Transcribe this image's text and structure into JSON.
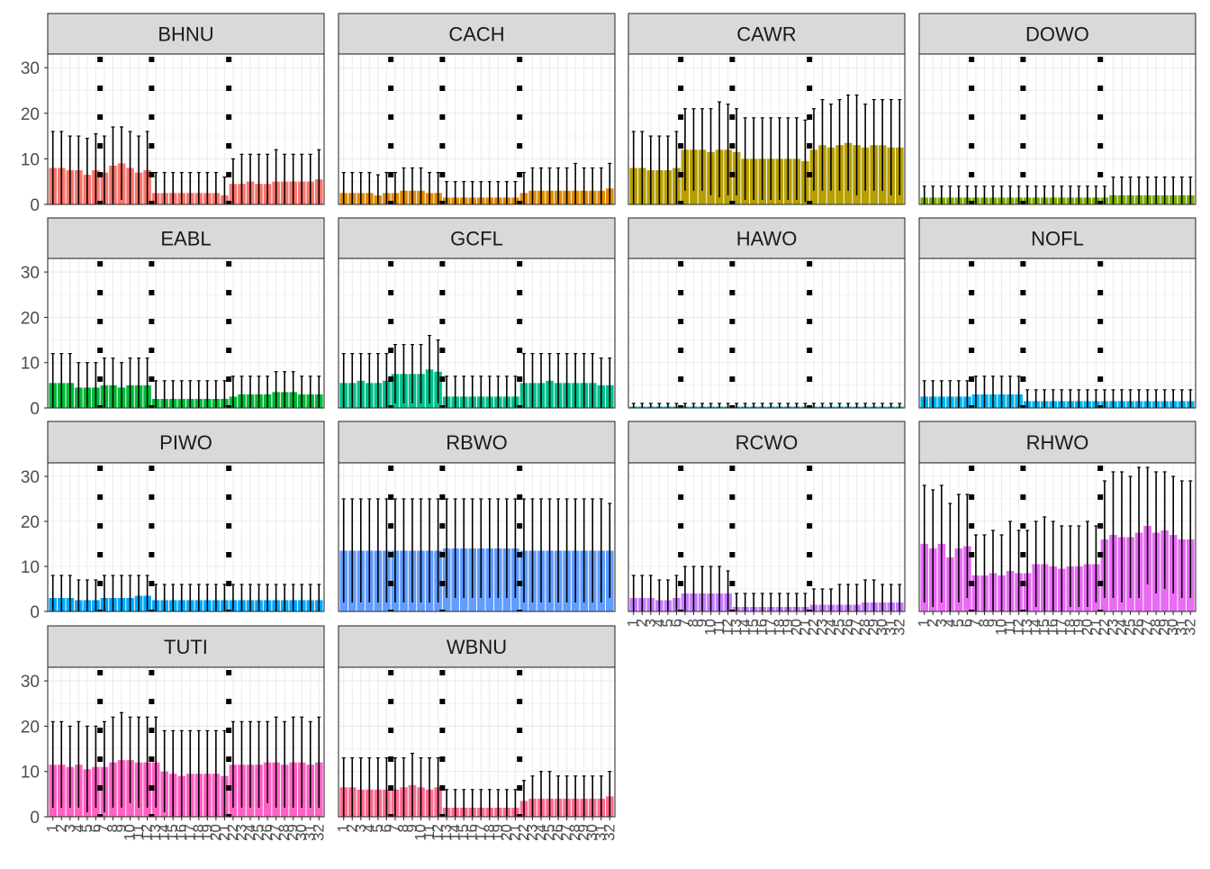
{
  "chart_data": {
    "type": "bar",
    "layout": "faceted grid, 4 columns, free x tick labels on bottom panel of each column",
    "x": [
      1,
      2,
      3,
      4,
      5,
      6,
      7,
      8,
      9,
      10,
      11,
      12,
      13,
      14,
      15,
      16,
      17,
      18,
      19,
      20,
      21,
      22,
      23,
      24,
      25,
      26,
      27,
      28,
      29,
      30,
      31,
      32
    ],
    "x_tick_labels": [
      "1",
      "2",
      "3",
      "4",
      "5",
      "6",
      "7",
      "8",
      "9",
      "10",
      "11",
      "12",
      "13",
      "14",
      "15",
      "16",
      "17",
      "18",
      "19",
      "20",
      "21",
      "22",
      "23",
      "24",
      "25",
      "26",
      "27",
      "28",
      "29",
      "30",
      "31",
      "32"
    ],
    "ylim": [
      0,
      33
    ],
    "y_ticks": [
      0,
      10,
      20,
      30
    ],
    "xlabel": "",
    "ylabel": "",
    "grid": true,
    "legend": "none",
    "vlines": {
      "x": [
        6.5,
        12.5,
        21.5
      ],
      "style": "dotted",
      "color": "#000000"
    },
    "error_bars": "upper bound per bar",
    "facets": [
      {
        "name": "BHNU",
        "color": "#F8766D",
        "values": [
          8,
          8,
          7.5,
          7.5,
          6.5,
          7.5,
          7,
          8.5,
          9,
          8,
          7,
          7.5,
          2.5,
          2.5,
          2.5,
          2.5,
          2.5,
          2.5,
          2.5,
          2.5,
          2,
          4.5,
          4.5,
          5,
          4.5,
          4.5,
          5,
          5,
          5,
          5,
          5,
          5.5
        ],
        "upper": [
          16,
          16,
          15,
          15,
          14.5,
          15.5,
          15,
          17,
          17,
          16,
          15,
          16,
          7,
          7,
          7,
          7,
          7,
          7,
          7,
          7,
          6,
          10,
          11,
          11,
          11,
          11,
          12,
          11,
          11,
          11,
          11,
          12
        ]
      },
      {
        "name": "CACH",
        "color": "#DE8C00",
        "values": [
          2.5,
          2.5,
          2.5,
          2.5,
          2,
          2.5,
          2.5,
          3,
          3,
          3,
          2.5,
          2.5,
          1.5,
          1.5,
          1.5,
          1.5,
          1.5,
          1.5,
          1.5,
          1.5,
          1.5,
          2.5,
          3,
          3,
          3,
          3,
          3,
          3,
          3,
          3,
          3,
          3.5
        ],
        "upper": [
          7,
          7,
          7,
          7,
          6.5,
          7,
          7,
          8,
          8,
          8,
          7,
          7,
          5,
          5,
          5,
          5,
          5,
          5,
          5,
          5,
          5,
          7,
          8,
          8,
          8,
          8,
          8,
          9,
          8,
          8,
          8,
          9
        ]
      },
      {
        "name": "CAWR",
        "color": "#B79F00",
        "values": [
          8,
          8,
          7.5,
          7.5,
          7.5,
          8,
          12,
          12,
          12,
          11.5,
          12,
          12,
          11.5,
          10,
          10,
          10,
          10,
          10,
          10,
          10,
          9.5,
          12,
          13,
          12.5,
          13,
          13.5,
          13,
          12.5,
          13,
          13,
          12.5,
          12.5
        ],
        "upper": [
          16,
          16,
          15,
          15,
          15,
          16,
          21,
          21,
          21,
          21,
          22.5,
          22,
          21,
          19,
          19,
          19,
          19,
          19,
          19,
          19,
          18.5,
          21,
          23,
          22,
          23,
          24,
          24,
          22,
          23,
          23,
          23,
          23
        ]
      },
      {
        "name": "DOWO",
        "color": "#7CAE00",
        "values": [
          1.5,
          1.5,
          1.5,
          1.5,
          1.5,
          1.5,
          1.5,
          1.5,
          1.5,
          1.5,
          1.5,
          1.5,
          1.5,
          1.5,
          1.5,
          1.5,
          1.5,
          1.5,
          1.5,
          1.5,
          1.5,
          1.5,
          2,
          2,
          2,
          2,
          2,
          2,
          2,
          2,
          2,
          2
        ],
        "upper": [
          4,
          4,
          4,
          4,
          4,
          4,
          4,
          4,
          4,
          4,
          4,
          4,
          4,
          4,
          4,
          4,
          4,
          4,
          4,
          4,
          4,
          4,
          6,
          6,
          6,
          6,
          6,
          6,
          6,
          6,
          6,
          6
        ]
      },
      {
        "name": "EABL",
        "color": "#00BA38",
        "values": [
          5.5,
          5.5,
          5.5,
          4.5,
          4.5,
          4.5,
          5,
          5,
          4.5,
          5,
          5,
          5,
          2,
          2,
          2,
          2,
          2,
          2,
          2,
          2,
          2,
          2.5,
          3,
          3,
          3,
          3,
          3.5,
          3.5,
          3.5,
          3,
          3,
          3
        ],
        "upper": [
          12,
          12,
          12,
          10,
          10,
          10,
          11,
          11,
          10,
          11,
          11,
          11,
          6,
          6,
          6,
          6,
          6,
          6,
          6,
          6,
          6,
          7,
          7,
          7,
          7,
          7,
          8,
          8,
          8,
          7,
          7,
          7
        ]
      },
      {
        "name": "GCFL",
        "color": "#00C08B",
        "values": [
          5.5,
          5.5,
          6,
          5.5,
          5.5,
          6,
          7.5,
          7.5,
          7.5,
          7.5,
          8.5,
          8,
          2.5,
          2.5,
          2.5,
          2.5,
          2.5,
          2.5,
          2.5,
          2.5,
          2.5,
          5.5,
          5.5,
          5.5,
          6,
          5.5,
          5.5,
          5.5,
          5.5,
          5.5,
          5,
          5
        ],
        "upper": [
          12,
          12,
          12,
          12,
          12,
          12,
          14,
          14,
          14,
          14,
          16,
          15,
          7,
          7,
          7,
          7,
          7,
          7,
          7,
          7,
          7,
          12,
          12,
          12,
          12,
          12,
          12,
          12,
          12,
          12,
          11,
          11
        ]
      },
      {
        "name": "HAWO",
        "color": "#00BFC4",
        "values": [
          0.3,
          0.3,
          0.3,
          0.3,
          0.3,
          0.3,
          0.3,
          0.3,
          0.3,
          0.3,
          0.3,
          0.3,
          0.3,
          0.3,
          0.3,
          0.3,
          0.3,
          0.3,
          0.3,
          0.3,
          0.3,
          0.3,
          0.3,
          0.3,
          0.3,
          0.3,
          0.3,
          0.3,
          0.3,
          0.3,
          0.3,
          0.3
        ],
        "upper": [
          1,
          1,
          1,
          1,
          1,
          1,
          1,
          1,
          1,
          1,
          1,
          1,
          1,
          1,
          1,
          1,
          1,
          1,
          1,
          1,
          1,
          1,
          1,
          1,
          1,
          1,
          1,
          1,
          1,
          1,
          1,
          1
        ]
      },
      {
        "name": "NOFL",
        "color": "#00B4F0",
        "values": [
          2.5,
          2.5,
          2.5,
          2.5,
          2.5,
          2.5,
          3,
          3,
          3,
          3,
          3,
          3,
          1.5,
          1.5,
          1.5,
          1.5,
          1.5,
          1.5,
          1.5,
          1.5,
          1.5,
          1.5,
          1.5,
          1.5,
          1.5,
          1.5,
          1.5,
          1.5,
          1.5,
          1.5,
          1.5,
          1.5
        ],
        "upper": [
          6,
          6,
          6,
          6,
          6,
          6,
          7,
          7,
          7,
          7,
          7,
          7,
          4,
          4,
          4,
          4,
          4,
          4,
          4,
          4,
          4,
          4,
          4,
          4,
          4,
          4,
          4,
          4,
          4,
          4,
          4,
          4
        ]
      },
      {
        "name": "PIWO",
        "color": "#00A9FF",
        "values": [
          3,
          3,
          3,
          2.5,
          2.5,
          2.5,
          3,
          3,
          3,
          3,
          3.5,
          3.5,
          2.5,
          2.5,
          2.5,
          2.5,
          2.5,
          2.5,
          2.5,
          2.5,
          2.5,
          2.5,
          2.5,
          2.5,
          2.5,
          2.5,
          2.5,
          2.5,
          2.5,
          2.5,
          2.5,
          2.5
        ],
        "upper": [
          8,
          8,
          8,
          7,
          7,
          7,
          8,
          8,
          8,
          8,
          8,
          8,
          6,
          6,
          6,
          6,
          6,
          6,
          6,
          6,
          6,
          6,
          6,
          6,
          6,
          6,
          6,
          6,
          6,
          6,
          6,
          6
        ]
      },
      {
        "name": "RBWO",
        "color": "#619CFF",
        "values": [
          13.5,
          13.5,
          13.5,
          13.5,
          13.5,
          13.5,
          13.5,
          13.5,
          13.5,
          13.5,
          13.5,
          13.5,
          14,
          14,
          14,
          14,
          14,
          14,
          14,
          14,
          14,
          13.5,
          13.5,
          13.5,
          13.5,
          13.5,
          13.5,
          13.5,
          13.5,
          13.5,
          13.5,
          13.5
        ],
        "upper": [
          25,
          25,
          25,
          25,
          25,
          25,
          25,
          25,
          25,
          25,
          25,
          25,
          25,
          25,
          25,
          25,
          25,
          25,
          25,
          25,
          25,
          25,
          25,
          25,
          25,
          25,
          25,
          25,
          25,
          25,
          25,
          24
        ]
      },
      {
        "name": "RCWO",
        "color": "#C77CFF",
        "values": [
          3,
          3,
          3,
          2.5,
          2.5,
          3,
          4,
          4,
          4,
          4,
          4,
          4,
          1,
          1,
          1,
          1,
          1,
          1,
          1,
          1,
          1,
          1.5,
          1.5,
          1.5,
          1.5,
          1.5,
          1.5,
          2,
          2,
          2,
          2,
          2
        ],
        "upper": [
          8,
          8,
          8,
          7,
          7,
          8,
          10,
          10,
          10,
          10,
          10,
          9,
          4,
          4,
          4,
          4,
          4,
          4,
          4,
          4,
          4,
          5,
          5,
          5,
          6,
          6,
          6,
          7,
          7,
          6,
          6,
          6
        ]
      },
      {
        "name": "RHWO",
        "color": "#E76BF3",
        "values": [
          15,
          14,
          15,
          12,
          14,
          14.5,
          8,
          8,
          8.5,
          8,
          9,
          8.5,
          8.5,
          10.5,
          10.5,
          10,
          9.5,
          10,
          10,
          10.5,
          10.5,
          16,
          17,
          16.5,
          16.5,
          17.5,
          19,
          17.5,
          18,
          17,
          16,
          16
        ],
        "upper": [
          28,
          27,
          28,
          24,
          26,
          26,
          17,
          17,
          18,
          17,
          20,
          18,
          18,
          20,
          21,
          20,
          19,
          19,
          19,
          20,
          19,
          29,
          31,
          31,
          30,
          32,
          32,
          31,
          31,
          30,
          29,
          29
        ]
      },
      {
        "name": "TUTI",
        "color": "#FF61C3",
        "values": [
          11.5,
          11.5,
          11,
          11.5,
          10.5,
          11,
          11,
          12,
          12.5,
          12.5,
          12,
          12,
          12,
          10,
          9.5,
          9,
          9.5,
          9.5,
          9.5,
          9.5,
          9,
          11.5,
          11.5,
          11.5,
          11.5,
          12,
          12,
          11.5,
          12,
          12,
          11.5,
          12
        ],
        "upper": [
          21,
          21,
          20,
          21,
          20,
          20,
          21,
          22,
          23,
          22,
          22,
          22,
          22,
          19,
          19,
          19,
          19,
          19,
          19,
          19,
          19,
          21,
          21,
          21,
          21,
          21,
          22,
          21,
          22,
          22,
          21,
          22
        ]
      },
      {
        "name": "WBNU",
        "color": "#FF6C91",
        "values": [
          6.5,
          6.5,
          6,
          6,
          6,
          6,
          6,
          6.5,
          7,
          6.5,
          6,
          6.5,
          2,
          2,
          2,
          2,
          2,
          2,
          2,
          2,
          2,
          3.5,
          4,
          4,
          4,
          4,
          4,
          4,
          4,
          4,
          4,
          4.5
        ],
        "upper": [
          13,
          13,
          13,
          13,
          13,
          13,
          13,
          13,
          14,
          13,
          13,
          13,
          6,
          6,
          6,
          6,
          6,
          6,
          6,
          6,
          6,
          8,
          9,
          10,
          10,
          9,
          9,
          9,
          9,
          9,
          9,
          10
        ]
      }
    ]
  }
}
